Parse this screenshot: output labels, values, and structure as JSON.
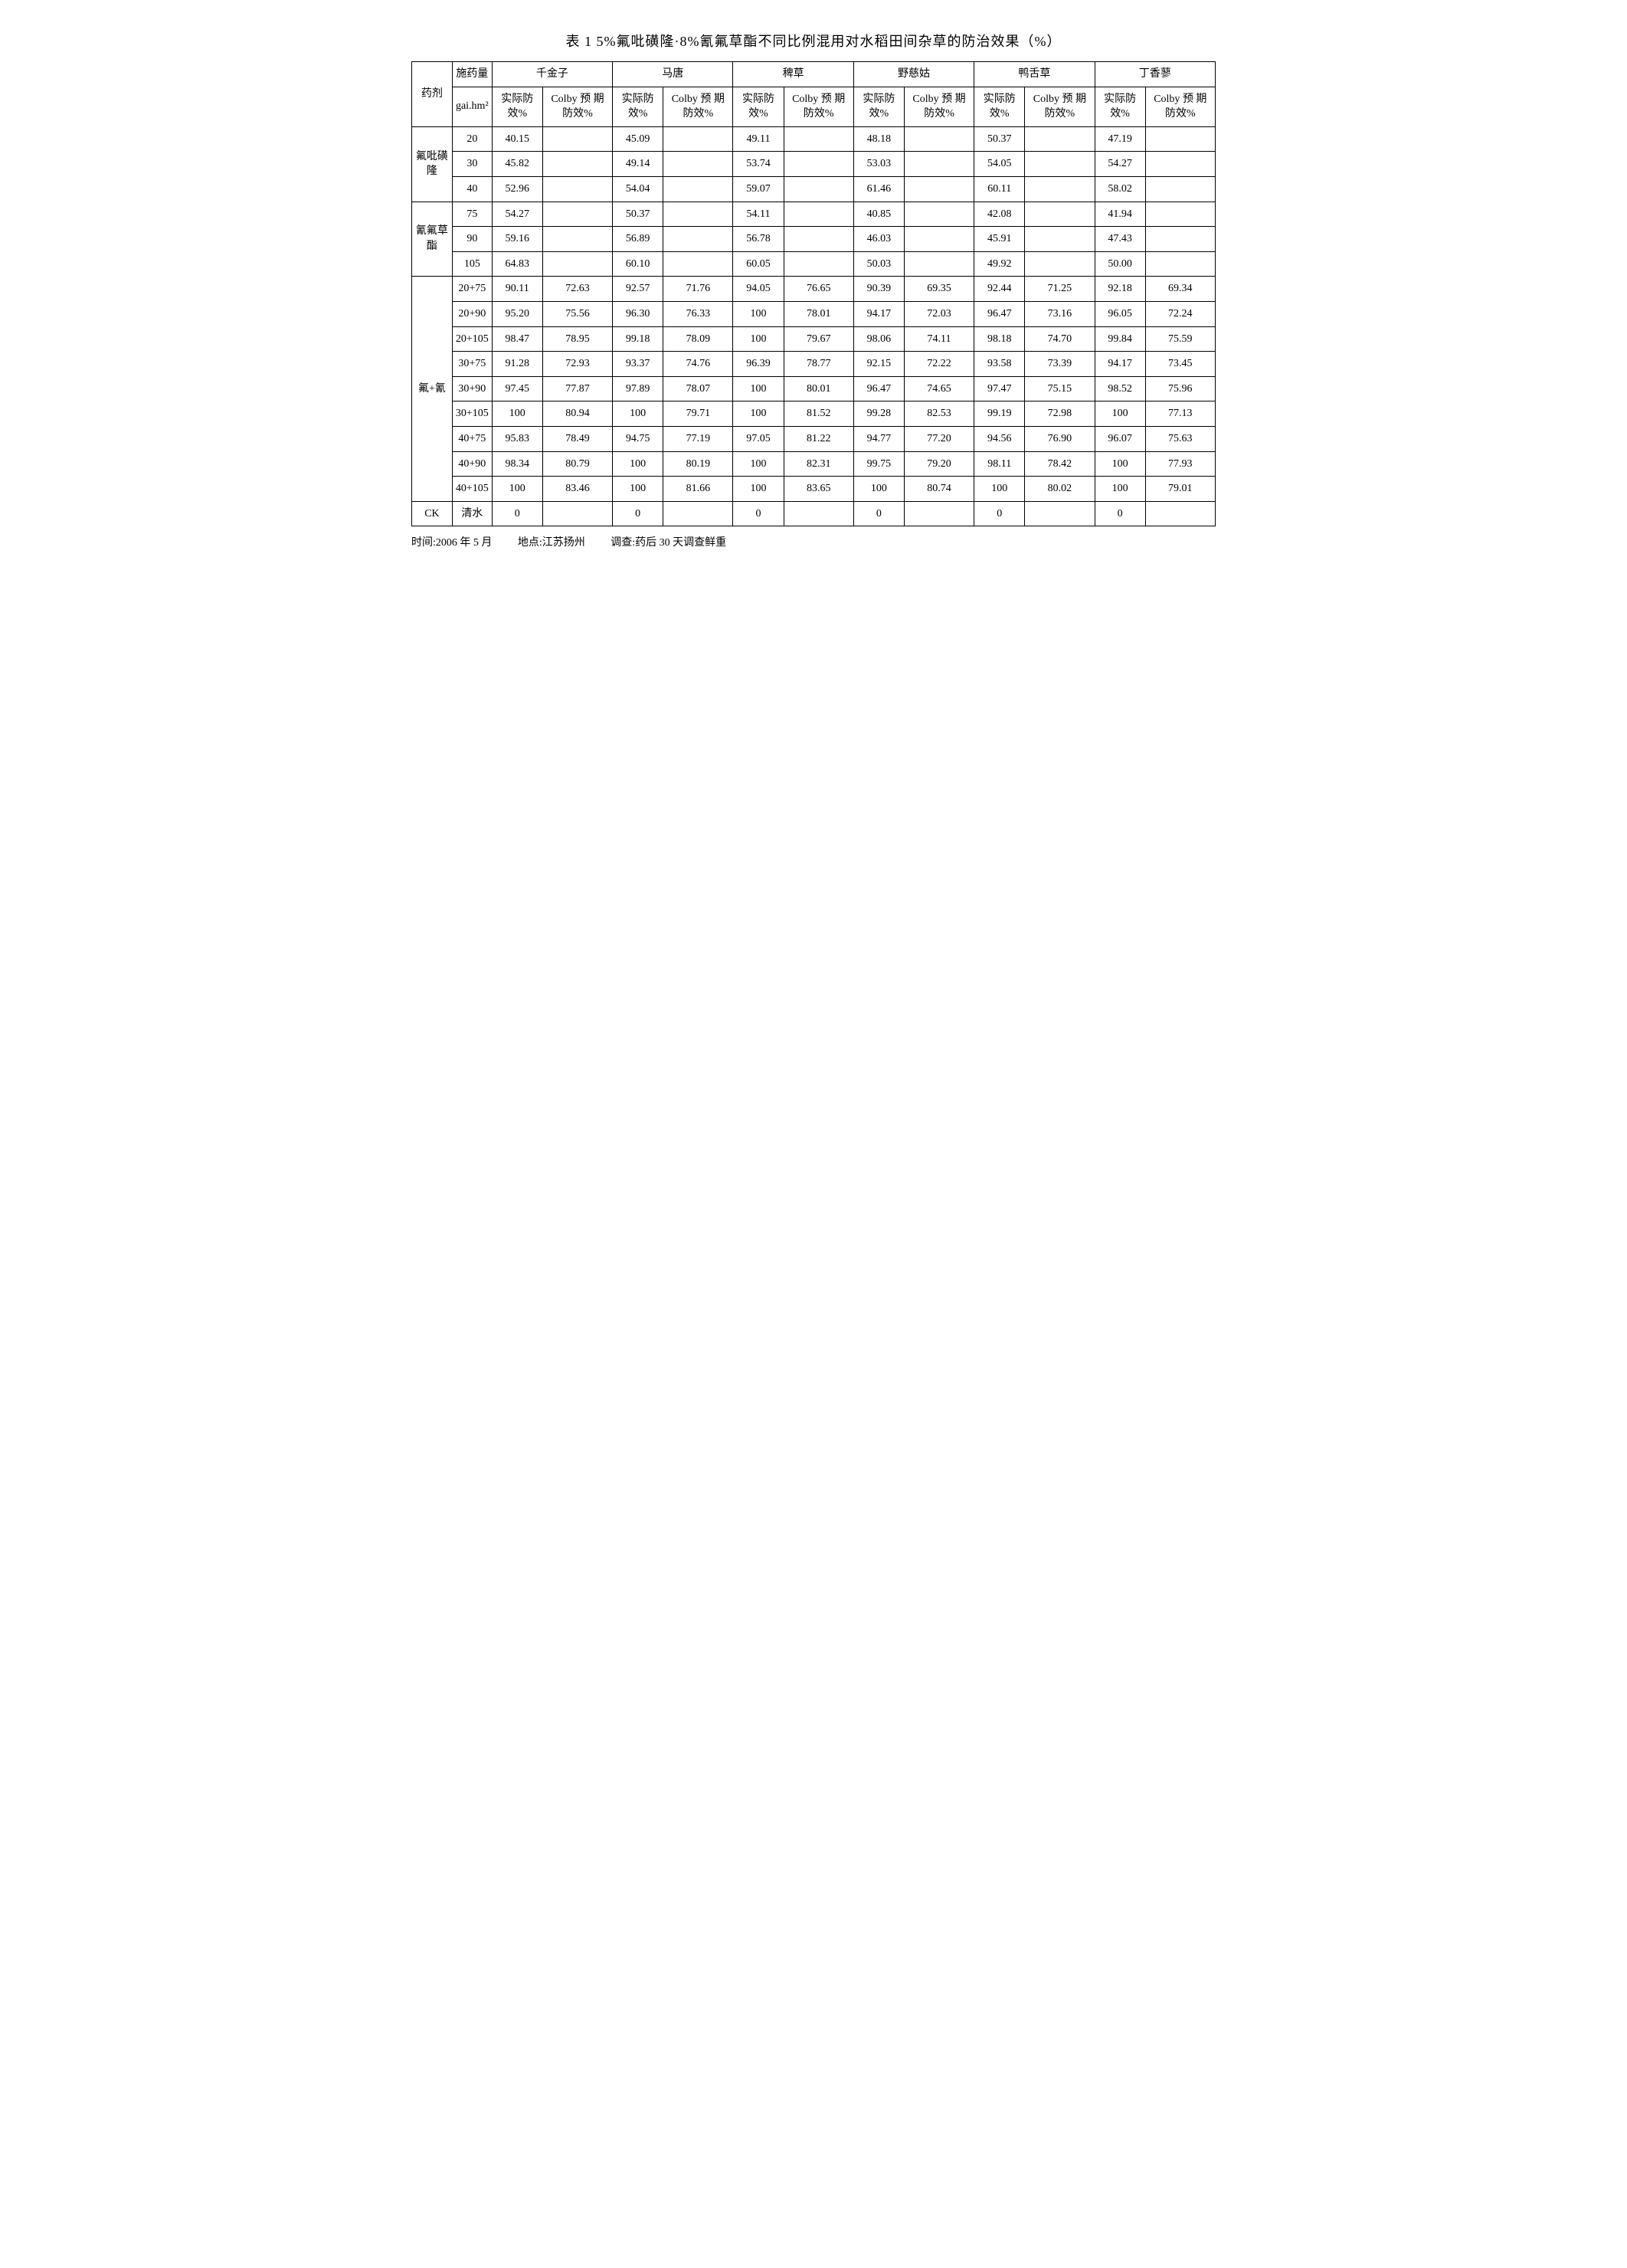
{
  "title": "表 1  5%氟吡磺隆·8%氰氟草酯不同比例混用对水稻田间杂草的防治效果（%）",
  "header": {
    "drug": "药剂",
    "dose": "施药量",
    "dose_unit": "gai.hm²",
    "weeds": [
      "千金子",
      "马唐",
      "稗草",
      "野慈姑",
      "鸭舌草",
      "丁香蓼"
    ],
    "sub_actual": "实际防\n效%",
    "sub_colby": "Colby 预\n期防效%"
  },
  "groups": [
    {
      "name": "氟吡磺隆",
      "rows": [
        {
          "dose": "20",
          "v": [
            {
              "a": "40.15",
              "c": ""
            },
            {
              "a": "45.09",
              "c": ""
            },
            {
              "a": "49.11",
              "c": ""
            },
            {
              "a": "48.18",
              "c": ""
            },
            {
              "a": "50.37",
              "c": ""
            },
            {
              "a": "47.19",
              "c": ""
            }
          ]
        },
        {
          "dose": "30",
          "v": [
            {
              "a": "45.82",
              "c": ""
            },
            {
              "a": "49.14",
              "c": ""
            },
            {
              "a": "53.74",
              "c": ""
            },
            {
              "a": "53.03",
              "c": ""
            },
            {
              "a": "54.05",
              "c": ""
            },
            {
              "a": "54.27",
              "c": ""
            }
          ]
        },
        {
          "dose": "40",
          "v": [
            {
              "a": "52.96",
              "c": ""
            },
            {
              "a": "54.04",
              "c": ""
            },
            {
              "a": "59.07",
              "c": ""
            },
            {
              "a": "61.46",
              "c": ""
            },
            {
              "a": "60.11",
              "c": ""
            },
            {
              "a": "58.02",
              "c": ""
            }
          ]
        }
      ]
    },
    {
      "name": "氰氟草酯",
      "rows": [
        {
          "dose": "75",
          "v": [
            {
              "a": "54.27",
              "c": ""
            },
            {
              "a": "50.37",
              "c": ""
            },
            {
              "a": "54.11",
              "c": ""
            },
            {
              "a": "40.85",
              "c": ""
            },
            {
              "a": "42.08",
              "c": ""
            },
            {
              "a": "41.94",
              "c": ""
            }
          ]
        },
        {
          "dose": "90",
          "v": [
            {
              "a": "59.16",
              "c": ""
            },
            {
              "a": "56.89",
              "c": ""
            },
            {
              "a": "56.78",
              "c": ""
            },
            {
              "a": "46.03",
              "c": ""
            },
            {
              "a": "45.91",
              "c": ""
            },
            {
              "a": "47.43",
              "c": ""
            }
          ]
        },
        {
          "dose": "105",
          "v": [
            {
              "a": "64.83",
              "c": ""
            },
            {
              "a": "60.10",
              "c": ""
            },
            {
              "a": "60.05",
              "c": ""
            },
            {
              "a": "50.03",
              "c": ""
            },
            {
              "a": "49.92",
              "c": ""
            },
            {
              "a": "50.00",
              "c": ""
            }
          ]
        }
      ]
    },
    {
      "name": "氟+氰",
      "rows": [
        {
          "dose": "20+75",
          "v": [
            {
              "a": "90.11",
              "c": "72.63"
            },
            {
              "a": "92.57",
              "c": "71.76"
            },
            {
              "a": "94.05",
              "c": "76.65"
            },
            {
              "a": "90.39",
              "c": "69.35"
            },
            {
              "a": "92.44",
              "c": "71.25"
            },
            {
              "a": "92.18",
              "c": "69.34"
            }
          ]
        },
        {
          "dose": "20+90",
          "v": [
            {
              "a": "95.20",
              "c": "75.56"
            },
            {
              "a": "96.30",
              "c": "76.33"
            },
            {
              "a": "100",
              "c": "78.01"
            },
            {
              "a": "94.17",
              "c": "72.03"
            },
            {
              "a": "96.47",
              "c": "73.16"
            },
            {
              "a": "96.05",
              "c": "72.24"
            }
          ]
        },
        {
          "dose": "20+105",
          "v": [
            {
              "a": "98.47",
              "c": "78.95"
            },
            {
              "a": "99.18",
              "c": "78.09"
            },
            {
              "a": "100",
              "c": "79.67"
            },
            {
              "a": "98.06",
              "c": "74.11"
            },
            {
              "a": "98.18",
              "c": "74.70"
            },
            {
              "a": "99.84",
              "c": "75.59"
            }
          ]
        },
        {
          "dose": "30+75",
          "v": [
            {
              "a": "91.28",
              "c": "72.93"
            },
            {
              "a": "93.37",
              "c": "74.76"
            },
            {
              "a": "96.39",
              "c": "78.77"
            },
            {
              "a": "92.15",
              "c": "72.22"
            },
            {
              "a": "93.58",
              "c": "73.39"
            },
            {
              "a": "94.17",
              "c": "73.45"
            }
          ]
        },
        {
          "dose": "30+90",
          "v": [
            {
              "a": "97.45",
              "c": "77.87"
            },
            {
              "a": "97.89",
              "c": "78.07"
            },
            {
              "a": "100",
              "c": "80.01"
            },
            {
              "a": "96.47",
              "c": "74.65"
            },
            {
              "a": "97.47",
              "c": "75.15"
            },
            {
              "a": "98.52",
              "c": "75.96"
            }
          ]
        },
        {
          "dose": "30+105",
          "v": [
            {
              "a": "100",
              "c": "80.94"
            },
            {
              "a": "100",
              "c": "79.71"
            },
            {
              "a": "100",
              "c": "81.52"
            },
            {
              "a": "99.28",
              "c": "82.53"
            },
            {
              "a": "99.19",
              "c": "72.98"
            },
            {
              "a": "100",
              "c": "77.13"
            }
          ]
        },
        {
          "dose": "40+75",
          "v": [
            {
              "a": "95.83",
              "c": "78.49"
            },
            {
              "a": "94.75",
              "c": "77.19"
            },
            {
              "a": "97.05",
              "c": "81.22"
            },
            {
              "a": "94.77",
              "c": "77.20"
            },
            {
              "a": "94.56",
              "c": "76.90"
            },
            {
              "a": "96.07",
              "c": "75.63"
            }
          ]
        },
        {
          "dose": "40+90",
          "v": [
            {
              "a": "98.34",
              "c": "80.79"
            },
            {
              "a": "100",
              "c": "80.19"
            },
            {
              "a": "100",
              "c": "82.31"
            },
            {
              "a": "99.75",
              "c": "79.20"
            },
            {
              "a": "98.11",
              "c": "78.42"
            },
            {
              "a": "100",
              "c": "77.93"
            }
          ]
        },
        {
          "dose": "40+105",
          "v": [
            {
              "a": "100",
              "c": "83.46"
            },
            {
              "a": "100",
              "c": "81.66"
            },
            {
              "a": "100",
              "c": "83.65"
            },
            {
              "a": "100",
              "c": "80.74"
            },
            {
              "a": "100",
              "c": "80.02"
            },
            {
              "a": "100",
              "c": "79.01"
            }
          ]
        }
      ]
    },
    {
      "name": "CK",
      "rows": [
        {
          "dose": "清水",
          "v": [
            {
              "a": "0",
              "c": ""
            },
            {
              "a": "0",
              "c": ""
            },
            {
              "a": "0",
              "c": ""
            },
            {
              "a": "0",
              "c": ""
            },
            {
              "a": "0",
              "c": ""
            },
            {
              "a": "0",
              "c": ""
            }
          ]
        }
      ]
    }
  ],
  "footer": {
    "time": "时间:2006 年 5 月",
    "place": "地点:江苏扬州",
    "survey": "调查:药后 30 天调查鲜重"
  }
}
